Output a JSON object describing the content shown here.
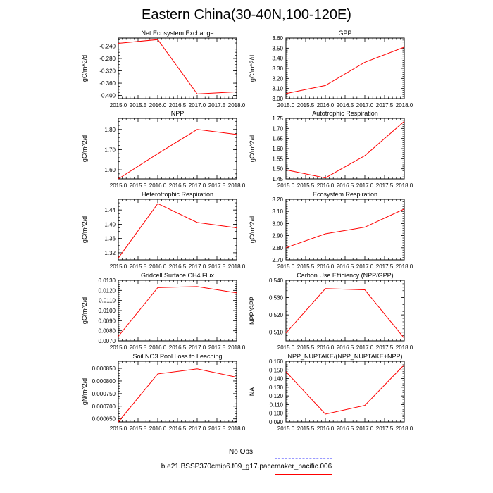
{
  "figure_title": "Eastern China(30-40N,100-120E)",
  "colors": {
    "line": "#ff0000",
    "obs_line": "#9999ff",
    "axis": "#000000"
  },
  "legend": [
    {
      "label": "No Obs",
      "style": "dashed",
      "color": "#9999ff"
    },
    {
      "label": "b.e21.BSSP370cmip6.f09_g17.pacemaker_pacific.006",
      "style": "solid",
      "color": "#ff0000"
    }
  ],
  "chart_data": [
    {
      "type": "line",
      "title": "Net Ecosystem Exchange",
      "xlabel": "",
      "ylabel": "gC/m^2/d",
      "x": [
        2015,
        2016,
        2017,
        2018
      ],
      "values": [
        -0.231,
        -0.219,
        -0.395,
        -0.388
      ],
      "xlim": [
        2015,
        2018
      ],
      "ylim": [
        -0.41,
        -0.214
      ],
      "xticks": [
        "2015.0",
        "2015.5",
        "2016.0",
        "2016.5",
        "2017.0",
        "2017.5",
        "2018.0"
      ],
      "yticks": [
        -0.24,
        -0.28,
        -0.32,
        -0.36,
        -0.4
      ],
      "ytick_labels": [
        "-0.240",
        "-0.280",
        "-0.320",
        "-0.360",
        "-0.400"
      ],
      "yminor": 0.01
    },
    {
      "type": "line",
      "title": "GPP",
      "xlabel": "",
      "ylabel": "gC/m^2/d",
      "x": [
        2015,
        2016,
        2017,
        2018
      ],
      "values": [
        3.05,
        3.13,
        3.36,
        3.51
      ],
      "xlim": [
        2015,
        2018
      ],
      "ylim": [
        3.0,
        3.6
      ],
      "xticks": [
        "2015.0",
        "2015.5",
        "2016.0",
        "2016.5",
        "2017.0",
        "2017.5",
        "2018.0"
      ],
      "yticks": [
        3.0,
        3.1,
        3.2,
        3.3,
        3.4,
        3.5,
        3.6
      ],
      "ytick_labels": [
        "3.00",
        "3.10",
        "3.20",
        "3.30",
        "3.40",
        "3.50",
        "3.60"
      ],
      "yminor": 0.02
    },
    {
      "type": "line",
      "title": "NPP",
      "xlabel": "",
      "ylabel": "gC/m^2/d",
      "x": [
        2015,
        2016,
        2017,
        2018
      ],
      "values": [
        1.555,
        1.68,
        1.8,
        1.775
      ],
      "xlim": [
        2015,
        2018
      ],
      "ylim": [
        1.555,
        1.855
      ],
      "xticks": [
        "2015.0",
        "2015.5",
        "2016.0",
        "2016.5",
        "2017.0",
        "2017.5",
        "2018.0"
      ],
      "yticks": [
        1.6,
        1.7,
        1.8
      ],
      "ytick_labels": [
        "1.60",
        "1.70",
        "1.80"
      ],
      "yminor": 0.02
    },
    {
      "type": "line",
      "title": "Autotrophic Respiration",
      "xlabel": "",
      "ylabel": "gC/m^2/d",
      "x": [
        2015,
        2016,
        2017,
        2018
      ],
      "values": [
        1.495,
        1.455,
        1.565,
        1.735
      ],
      "xlim": [
        2015,
        2018
      ],
      "ylim": [
        1.45,
        1.75
      ],
      "xticks": [
        "2015.0",
        "2015.5",
        "2016.0",
        "2016.5",
        "2017.0",
        "2017.5",
        "2018.0"
      ],
      "yticks": [
        1.45,
        1.5,
        1.55,
        1.6,
        1.65,
        1.7,
        1.75
      ],
      "ytick_labels": [
        "1.45",
        "1.50",
        "1.55",
        "1.60",
        "1.65",
        "1.70",
        "1.75"
      ],
      "yminor": 0.01
    },
    {
      "type": "line",
      "title": "Heterotrophic Respiration",
      "xlabel": "",
      "ylabel": "gC/m^2/d",
      "x": [
        2015,
        2016,
        2017,
        2018
      ],
      "values": [
        1.305,
        1.458,
        1.405,
        1.39
      ],
      "xlim": [
        2015,
        2018
      ],
      "ylim": [
        1.3,
        1.47
      ],
      "xticks": [
        "2015.0",
        "2015.5",
        "2016.0",
        "2016.5",
        "2017.0",
        "2017.5",
        "2018.0"
      ],
      "yticks": [
        1.32,
        1.36,
        1.4,
        1.44
      ],
      "ytick_labels": [
        "1.32",
        "1.36",
        "1.40",
        "1.44"
      ],
      "yminor": 0.01
    },
    {
      "type": "line",
      "title": "Ecosystem Respiration",
      "xlabel": "",
      "ylabel": "gC/m^2/d",
      "x": [
        2015,
        2016,
        2017,
        2018
      ],
      "values": [
        2.8,
        2.915,
        2.97,
        3.12
      ],
      "xlim": [
        2015,
        2018
      ],
      "ylim": [
        2.7,
        3.2
      ],
      "xticks": [
        "2015.0",
        "2015.5",
        "2016.0",
        "2016.5",
        "2017.0",
        "2017.5",
        "2018.0"
      ],
      "yticks": [
        2.7,
        2.8,
        2.9,
        3.0,
        3.1,
        3.2
      ],
      "ytick_labels": [
        "2.70",
        "2.80",
        "2.90",
        "3.00",
        "3.10",
        "3.20"
      ],
      "yminor": 0.02
    },
    {
      "type": "line",
      "title": "Gridcell Surface CH4 Flux",
      "xlabel": "",
      "ylabel": "gC/m^2/d",
      "x": [
        2015,
        2016,
        2017,
        2018
      ],
      "values": [
        0.00745,
        0.01228,
        0.01238,
        0.01175
      ],
      "xlim": [
        2015,
        2018
      ],
      "ylim": [
        0.007,
        0.013
      ],
      "xticks": [
        "2015.0",
        "2015.5",
        "2016.0",
        "2016.5",
        "2017.0",
        "2017.5",
        "2018.0"
      ],
      "yticks": [
        0.007,
        0.008,
        0.009,
        0.01,
        0.011,
        0.012,
        0.013
      ],
      "ytick_labels": [
        "0.0070",
        "0.0080",
        "0.0090",
        "0.0100",
        "0.0110",
        "0.0120",
        "0.0130"
      ],
      "yminor": 0.0002
    },
    {
      "type": "line",
      "title": "Carbon Use Efficiency (NPP/GPP)",
      "xlabel": "",
      "ylabel": "NPP/GPP",
      "x": [
        2015,
        2016,
        2017,
        2018
      ],
      "values": [
        0.5095,
        0.5352,
        0.5345,
        0.5065
      ],
      "xlim": [
        2015,
        2018
      ],
      "ylim": [
        0.505,
        0.54
      ],
      "xticks": [
        "2015.0",
        "2015.5",
        "2016.0",
        "2016.5",
        "2017.0",
        "2017.5",
        "2018.0"
      ],
      "yticks": [
        0.51,
        0.52,
        0.53,
        0.54
      ],
      "ytick_labels": [
        "0.510",
        "0.520",
        "0.530",
        "0.540"
      ],
      "yminor": 0.002
    },
    {
      "type": "line",
      "title": "Soil NO3 Pool Loss to Leaching",
      "xlabel": "",
      "ylabel": "gN/m^2/d",
      "x": [
        2015,
        2016,
        2017,
        2018
      ],
      "values": [
        0.000638,
        0.000828,
        0.000848,
        0.000815
      ],
      "xlim": [
        2015,
        2018
      ],
      "ylim": [
        0.000638,
        0.000878
      ],
      "xticks": [
        "2015.0",
        "2015.5",
        "2016.0",
        "2016.5",
        "2017.0",
        "2017.5",
        "2018.0"
      ],
      "yticks": [
        0.00065,
        0.0007,
        0.00075,
        0.0008,
        0.00085
      ],
      "ytick_labels": [
        "0.000650",
        "0.000700",
        "0.000750",
        "0.000800",
        "0.000850"
      ],
      "yminor": 1e-05
    },
    {
      "type": "line",
      "title": "NPP_NUPTAKE/(NPP_NUPTAKE+NPP)",
      "xlabel": "",
      "ylabel": "NA",
      "x": [
        2015,
        2016,
        2017,
        2018
      ],
      "values": [
        0.148,
        0.099,
        0.109,
        0.156
      ],
      "xlim": [
        2015,
        2018
      ],
      "ylim": [
        0.09,
        0.16
      ],
      "xticks": [
        "2015.0",
        "2015.5",
        "2016.0",
        "2016.5",
        "2017.0",
        "2017.5",
        "2018.0"
      ],
      "yticks": [
        0.09,
        0.1,
        0.11,
        0.12,
        0.13,
        0.14,
        0.15,
        0.16
      ],
      "ytick_labels": [
        "0.090",
        "0.100",
        "0.110",
        "0.120",
        "0.130",
        "0.140",
        "0.150",
        "0.160"
      ],
      "yminor": 0.002
    }
  ]
}
